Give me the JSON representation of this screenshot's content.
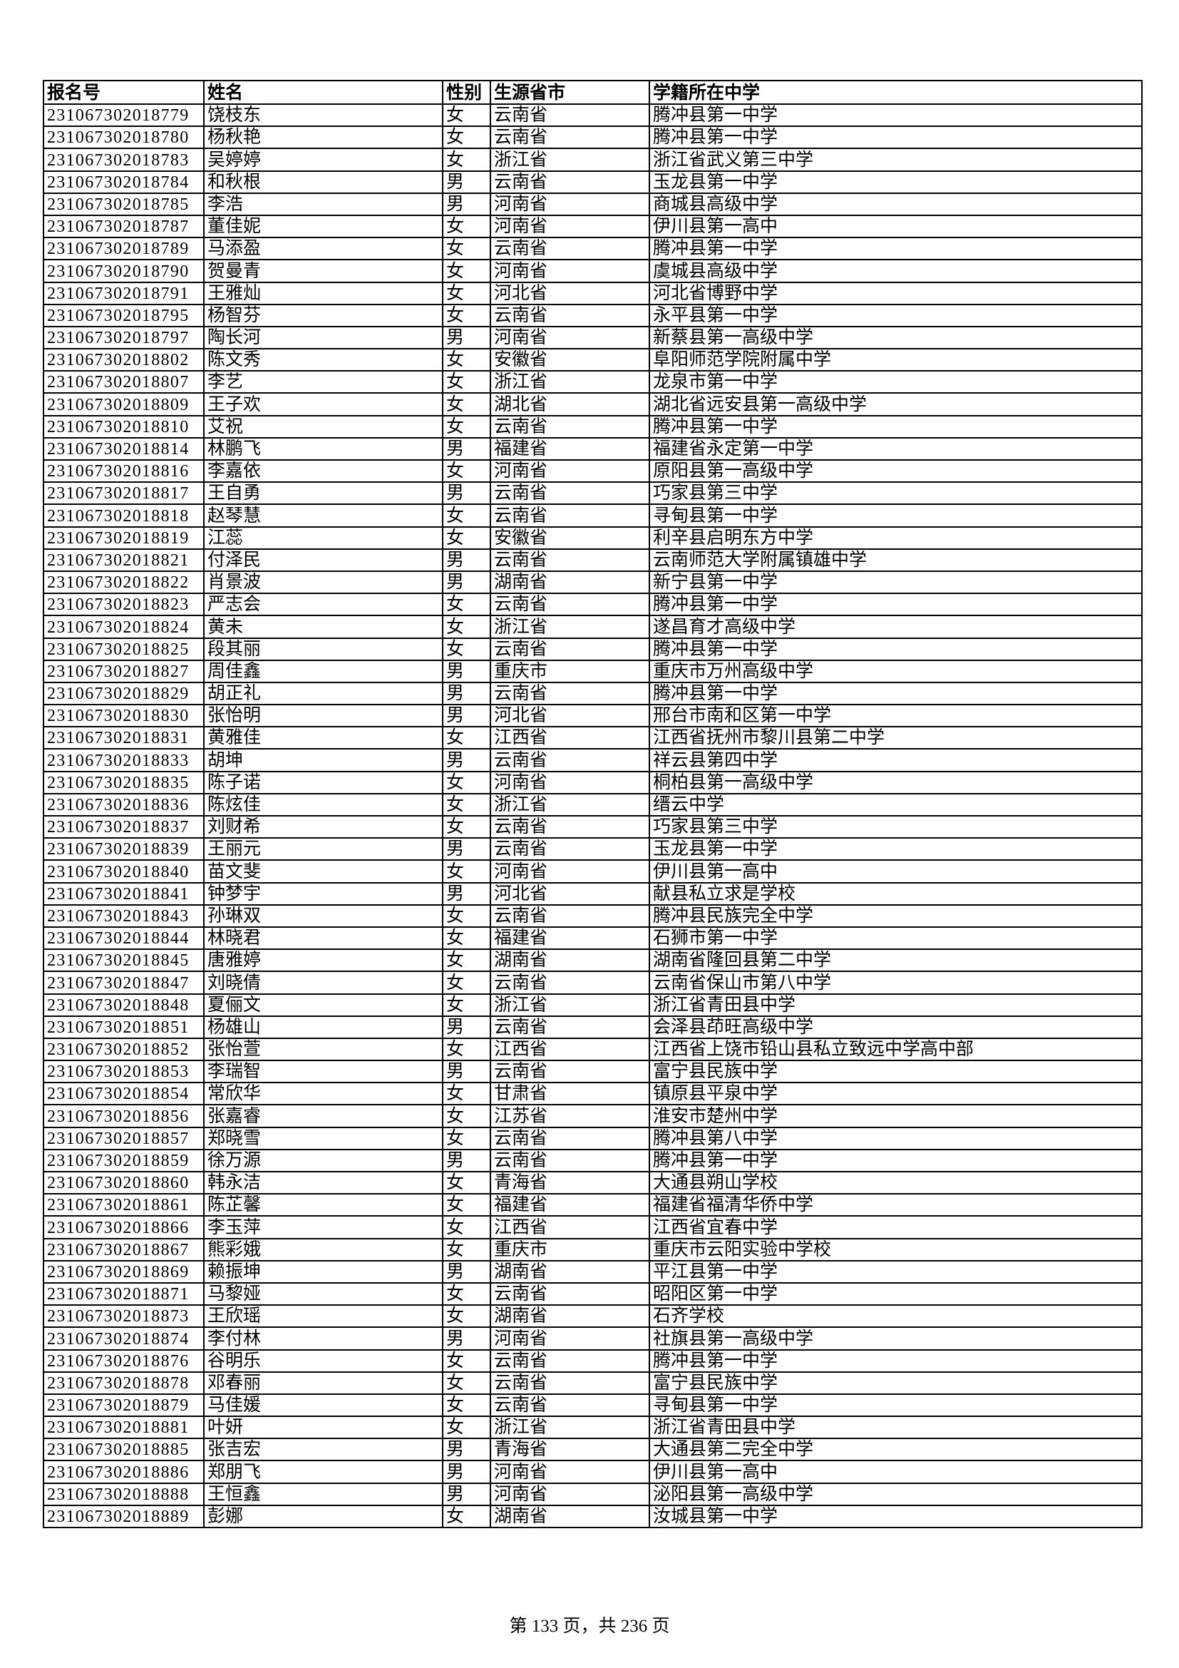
{
  "table": {
    "headers": [
      "报名号",
      "姓名",
      "性别",
      "生源省市",
      "学籍所在中学"
    ],
    "rows": [
      [
        "231067302018779",
        "饶枝东",
        "女",
        "云南省",
        "腾冲县第一中学"
      ],
      [
        "231067302018780",
        "杨秋艳",
        "女",
        "云南省",
        "腾冲县第一中学"
      ],
      [
        "231067302018783",
        "吴婷婷",
        "女",
        "浙江省",
        "浙江省武义第三中学"
      ],
      [
        "231067302018784",
        "和秋根",
        "男",
        "云南省",
        "玉龙县第一中学"
      ],
      [
        "231067302018785",
        "李浩",
        "男",
        "河南省",
        "商城县高级中学"
      ],
      [
        "231067302018787",
        "董佳妮",
        "女",
        "河南省",
        "伊川县第一高中"
      ],
      [
        "231067302018789",
        "马添盈",
        "女",
        "云南省",
        "腾冲县第一中学"
      ],
      [
        "231067302018790",
        "贺曼青",
        "女",
        "河南省",
        "虞城县高级中学"
      ],
      [
        "231067302018791",
        "王雅灿",
        "女",
        "河北省",
        "河北省博野中学"
      ],
      [
        "231067302018795",
        "杨智芬",
        "女",
        "云南省",
        "永平县第一中学"
      ],
      [
        "231067302018797",
        "陶长河",
        "男",
        "河南省",
        "新蔡县第一高级中学"
      ],
      [
        "231067302018802",
        "陈文秀",
        "女",
        "安徽省",
        "阜阳师范学院附属中学"
      ],
      [
        "231067302018807",
        "李艺",
        "女",
        "浙江省",
        "龙泉市第一中学"
      ],
      [
        "231067302018809",
        "王子欢",
        "女",
        "湖北省",
        "湖北省远安县第一高级中学"
      ],
      [
        "231067302018810",
        "艾祝",
        "女",
        "云南省",
        "腾冲县第一中学"
      ],
      [
        "231067302018814",
        "林鹏飞",
        "男",
        "福建省",
        "福建省永定第一中学"
      ],
      [
        "231067302018816",
        "李嘉依",
        "女",
        "河南省",
        "原阳县第一高级中学"
      ],
      [
        "231067302018817",
        "王自勇",
        "男",
        "云南省",
        "巧家县第三中学"
      ],
      [
        "231067302018818",
        "赵琴慧",
        "女",
        "云南省",
        "寻甸县第一中学"
      ],
      [
        "231067302018819",
        "江蕊",
        "女",
        "安徽省",
        "利辛县启明东方中学"
      ],
      [
        "231067302018821",
        "付泽民",
        "男",
        "云南省",
        "云南师范大学附属镇雄中学"
      ],
      [
        "231067302018822",
        "肖景波",
        "男",
        "湖南省",
        "新宁县第一中学"
      ],
      [
        "231067302018823",
        "严志会",
        "女",
        "云南省",
        "腾冲县第一中学"
      ],
      [
        "231067302018824",
        "黄未",
        "女",
        "浙江省",
        "遂昌育才高级中学"
      ],
      [
        "231067302018825",
        "段其丽",
        "女",
        "云南省",
        "腾冲县第一中学"
      ],
      [
        "231067302018827",
        "周佳鑫",
        "男",
        "重庆市",
        "重庆市万州高级中学"
      ],
      [
        "231067302018829",
        "胡正礼",
        "男",
        "云南省",
        "腾冲县第一中学"
      ],
      [
        "231067302018830",
        "张怡明",
        "男",
        "河北省",
        "邢台市南和区第一中学"
      ],
      [
        "231067302018831",
        "黄雅佳",
        "女",
        "江西省",
        "江西省抚州市黎川县第二中学"
      ],
      [
        "231067302018833",
        "胡坤",
        "男",
        "云南省",
        "祥云县第四中学"
      ],
      [
        "231067302018835",
        "陈子诺",
        "女",
        "河南省",
        "桐柏县第一高级中学"
      ],
      [
        "231067302018836",
        "陈炫佳",
        "女",
        "浙江省",
        "缙云中学"
      ],
      [
        "231067302018837",
        "刘财希",
        "女",
        "云南省",
        "巧家县第三中学"
      ],
      [
        "231067302018839",
        "王丽元",
        "男",
        "云南省",
        "玉龙县第一中学"
      ],
      [
        "231067302018840",
        "苗文斐",
        "女",
        "河南省",
        "伊川县第一高中"
      ],
      [
        "231067302018841",
        "钟梦宇",
        "男",
        "河北省",
        "献县私立求是学校"
      ],
      [
        "231067302018843",
        "孙琳双",
        "女",
        "云南省",
        "腾冲县民族完全中学"
      ],
      [
        "231067302018844",
        "林晓君",
        "女",
        "福建省",
        "石狮市第一中学"
      ],
      [
        "231067302018845",
        "唐雅婷",
        "女",
        "湖南省",
        "湖南省隆回县第二中学"
      ],
      [
        "231067302018847",
        "刘晓倩",
        "女",
        "云南省",
        "云南省保山市第八中学"
      ],
      [
        "231067302018848",
        "夏俪文",
        "女",
        "浙江省",
        "浙江省青田县中学"
      ],
      [
        "231067302018851",
        "杨雄山",
        "男",
        "云南省",
        "会泽县茚旺高级中学"
      ],
      [
        "231067302018852",
        "张怡萱",
        "女",
        "江西省",
        "江西省上饶市铅山县私立致远中学高中部"
      ],
      [
        "231067302018853",
        "李瑞智",
        "男",
        "云南省",
        "富宁县民族中学"
      ],
      [
        "231067302018854",
        "常欣华",
        "女",
        "甘肃省",
        "镇原县平泉中学"
      ],
      [
        "231067302018856",
        "张嘉睿",
        "女",
        "江苏省",
        "淮安市楚州中学"
      ],
      [
        "231067302018857",
        "郑晓雪",
        "女",
        "云南省",
        "腾冲县第八中学"
      ],
      [
        "231067302018859",
        "徐万源",
        "男",
        "云南省",
        "腾冲县第一中学"
      ],
      [
        "231067302018860",
        "韩永洁",
        "女",
        "青海省",
        "大通县朔山学校"
      ],
      [
        "231067302018861",
        "陈芷馨",
        "女",
        "福建省",
        "福建省福清华侨中学"
      ],
      [
        "231067302018866",
        "李玉萍",
        "女",
        "江西省",
        "江西省宜春中学"
      ],
      [
        "231067302018867",
        "熊彩娥",
        "女",
        "重庆市",
        "重庆市云阳实验中学校"
      ],
      [
        "231067302018869",
        "赖振坤",
        "男",
        "湖南省",
        "平江县第一中学"
      ],
      [
        "231067302018871",
        "马黎娅",
        "女",
        "云南省",
        "昭阳区第一中学"
      ],
      [
        "231067302018873",
        "王欣瑶",
        "女",
        "湖南省",
        "石齐学校"
      ],
      [
        "231067302018874",
        "李付林",
        "男",
        "河南省",
        "社旗县第一高级中学"
      ],
      [
        "231067302018876",
        "谷明乐",
        "女",
        "云南省",
        "腾冲县第一中学"
      ],
      [
        "231067302018878",
        "邓春丽",
        "女",
        "云南省",
        "富宁县民族中学"
      ],
      [
        "231067302018879",
        "马佳媛",
        "女",
        "云南省",
        "寻甸县第一中学"
      ],
      [
        "231067302018881",
        "叶妍",
        "女",
        "浙江省",
        "浙江省青田县中学"
      ],
      [
        "231067302018885",
        "张吉宏",
        "男",
        "青海省",
        "大通县第二完全中学"
      ],
      [
        "231067302018886",
        "郑朋飞",
        "男",
        "河南省",
        "伊川县第一高中"
      ],
      [
        "231067302018888",
        "王恒鑫",
        "男",
        "河南省",
        "泌阳县第一高级中学"
      ],
      [
        "231067302018889",
        "彭娜",
        "女",
        "湖南省",
        "汝城县第一中学"
      ]
    ]
  },
  "footer": {
    "page_label": "第 133 页，共 236 页"
  }
}
